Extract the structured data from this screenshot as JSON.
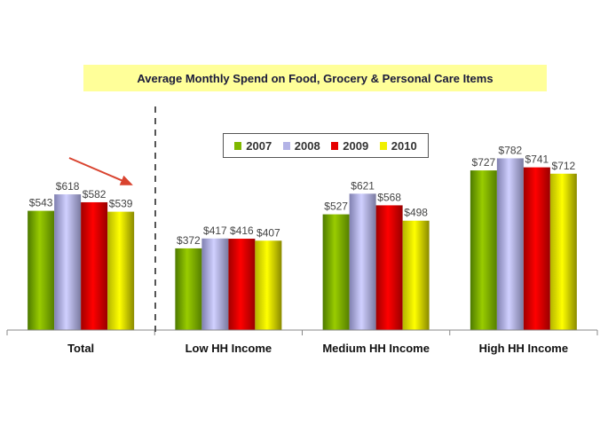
{
  "chart_data": {
    "type": "bar",
    "title": "Average Monthly Spend on Food, Grocery & Personal Care Items",
    "categories": [
      "Total",
      "Low HH Income",
      "Medium HH Income",
      "High HH Income"
    ],
    "series": [
      {
        "name": "2007",
        "color": "#7fb800",
        "values": [
          543,
          372,
          527,
          727
        ]
      },
      {
        "name": "2008",
        "color": "#b3b3e6",
        "values": [
          618,
          417,
          621,
          782
        ]
      },
      {
        "name": "2009",
        "color": "#e60000",
        "values": [
          582,
          416,
          568,
          741
        ]
      },
      {
        "name": "2010",
        "color": "#f0f000",
        "values": [
          539,
          407,
          498,
          712
        ]
      }
    ],
    "value_prefix": "$",
    "ylim": [
      0,
      950
    ],
    "legend": "top-center",
    "grid": false,
    "annotations": [
      "downward trend arrow over Total",
      "dashed divider between Total and income groups"
    ]
  }
}
